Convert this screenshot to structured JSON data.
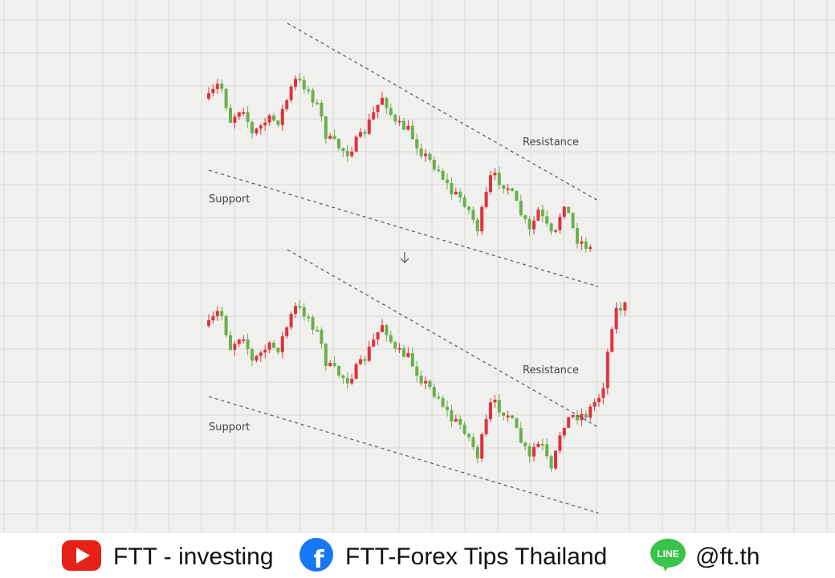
{
  "panels": [
    {
      "resistance_label": "Resistance",
      "support_label": "Support"
    },
    {
      "resistance_label": "Resistance",
      "support_label": "Support"
    }
  ],
  "footer": {
    "youtube": "FTT - investing",
    "facebook": "FTT-Forex Tips Thailand",
    "line_icon": "LINE",
    "line": "@ft.th"
  }
}
